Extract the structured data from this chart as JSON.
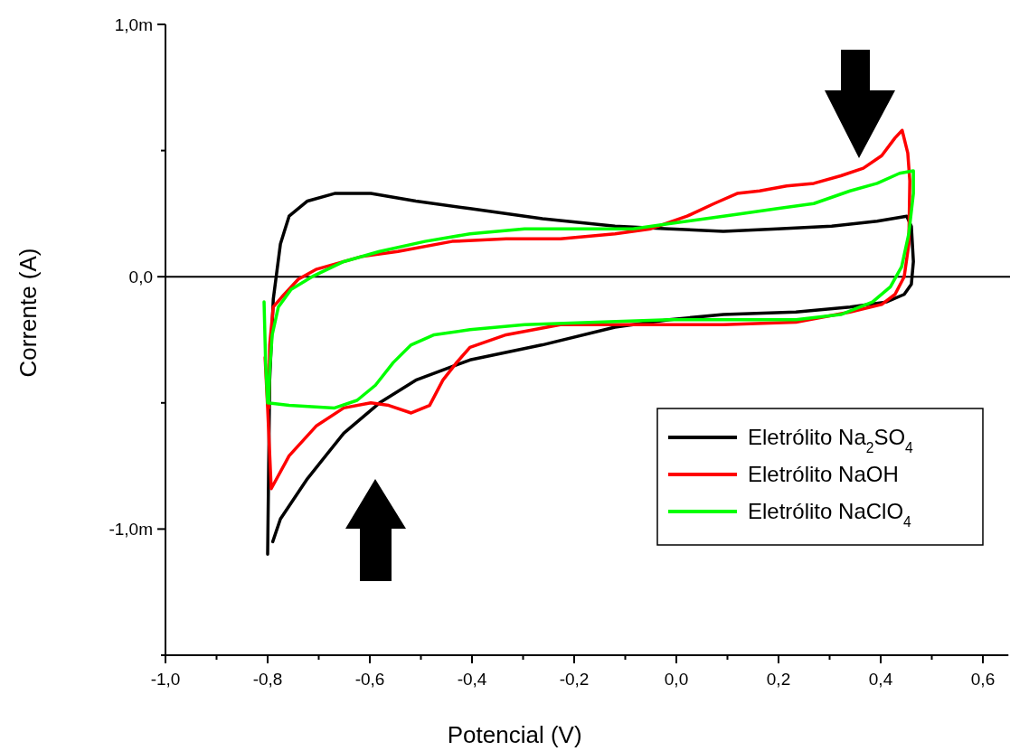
{
  "chart_data": {
    "type": "line",
    "xlabel": "Potencial (V)",
    "ylabel": "Corrente (A)",
    "xlim": [
      -1,
      0.65
    ],
    "ylim": [
      -1.5,
      1.0
    ],
    "xticks": [
      {
        "value": -1,
        "label": "-1,0"
      },
      {
        "value": -0.9,
        "label": null
      },
      {
        "value": -0.8,
        "label": "-0,8"
      },
      {
        "value": -0.7,
        "label": null
      },
      {
        "value": -0.6,
        "label": "-0,6"
      },
      {
        "value": -0.5,
        "label": null
      },
      {
        "value": -0.4,
        "label": "-0,4"
      },
      {
        "value": -0.3,
        "label": null
      },
      {
        "value": -0.2,
        "label": "-0,2"
      },
      {
        "value": -0.1,
        "label": null
      },
      {
        "value": 0,
        "label": "0,0"
      },
      {
        "value": 0.1,
        "label": null
      },
      {
        "value": 0.2,
        "label": "0,2"
      },
      {
        "value": 0.3,
        "label": null
      },
      {
        "value": 0.4,
        "label": "0,4"
      },
      {
        "value": 0.5,
        "label": null
      },
      {
        "value": 0.6,
        "label": "0,6"
      }
    ],
    "yticks": [
      {
        "value": -1.5,
        "label": null
      },
      {
        "value": -1.0,
        "label": "-1,0m"
      },
      {
        "value": -0.5,
        "label": null
      },
      {
        "value": 0,
        "label": "0,0"
      },
      {
        "value": 0.5,
        "label": null
      },
      {
        "value": 1.0,
        "label": "1,0m"
      }
    ],
    "ref_lines": [
      {
        "axis": "y",
        "value": 0
      }
    ],
    "legend": "bottom right",
    "marker": "none",
    "line_style": "solid",
    "series": [
      {
        "name": "Eletrólito Na$_{2}$SO$_{4}$",
        "color": "#000000",
        "x": [
          -0.8,
          -0.796,
          -0.789,
          -0.775,
          -0.758,
          -0.722,
          -0.669,
          -0.598,
          -0.51,
          -0.404,
          -0.262,
          -0.12,
          -0.014,
          0.092,
          0.198,
          0.304,
          0.393,
          0.451,
          0.46,
          0.464,
          0.46,
          0.446,
          0.411,
          0.34,
          0.234,
          0.092,
          -0.014,
          -0.12,
          -0.262,
          -0.404,
          -0.51,
          -0.581,
          -0.651,
          -0.722,
          -0.775,
          -0.79
        ],
        "values": [
          -1.1,
          -0.41,
          -0.09,
          0.13,
          0.24,
          0.3,
          0.33,
          0.33,
          0.3,
          0.27,
          0.23,
          0.2,
          0.19,
          0.18,
          0.19,
          0.2,
          0.22,
          0.24,
          0.2,
          0.06,
          -0.03,
          -0.07,
          -0.1,
          -0.12,
          -0.14,
          -0.15,
          -0.17,
          -0.2,
          -0.27,
          -0.33,
          -0.41,
          -0.5,
          -0.62,
          -0.8,
          -0.96,
          -1.05
        ]
      },
      {
        "name": "Eletrólito NaOH",
        "color": "#ff0000",
        "x": [
          -0.805,
          -0.8,
          -0.793,
          -0.758,
          -0.704,
          -0.651,
          -0.598,
          -0.563,
          -0.519,
          -0.483,
          -0.457,
          -0.43,
          -0.404,
          -0.333,
          -0.227,
          -0.085,
          0.092,
          0.234,
          0.34,
          0.402,
          0.428,
          0.446,
          0.455,
          0.457,
          0.453,
          0.442,
          0.428,
          0.402,
          0.366,
          0.322,
          0.269,
          0.216,
          0.163,
          0.119,
          0.074,
          0.021,
          -0.05,
          -0.12,
          -0.227,
          -0.333,
          -0.439,
          -0.545,
          -0.616,
          -0.704,
          -0.74,
          -0.772,
          -0.789,
          -0.796,
          -0.798
        ],
        "values": [
          -0.32,
          -0.52,
          -0.84,
          -0.71,
          -0.59,
          -0.52,
          -0.5,
          -0.51,
          -0.54,
          -0.51,
          -0.41,
          -0.34,
          -0.28,
          -0.23,
          -0.19,
          -0.19,
          -0.19,
          -0.18,
          -0.14,
          -0.11,
          -0.07,
          0,
          0.13,
          0.38,
          0.49,
          0.58,
          0.55,
          0.48,
          0.43,
          0.4,
          0.37,
          0.36,
          0.34,
          0.33,
          0.29,
          0.24,
          0.19,
          0.17,
          0.15,
          0.15,
          0.14,
          0.1,
          0.08,
          0.03,
          -0.01,
          -0.08,
          -0.12,
          -0.27,
          -0.52
        ]
      },
      {
        "name": "Eletrólito NaClO$_{4}$",
        "color": "#00ff00",
        "x": [
          -0.807,
          -0.804,
          -0.8,
          -0.758,
          -0.669,
          -0.625,
          -0.589,
          -0.554,
          -0.519,
          -0.474,
          -0.404,
          -0.297,
          -0.156,
          -0.014,
          0.127,
          0.234,
          0.322,
          0.384,
          0.419,
          0.441,
          0.455,
          0.464,
          0.464,
          0.437,
          0.393,
          0.34,
          0.269,
          0.198,
          0.127,
          0.057,
          -0.014,
          -0.085,
          -0.191,
          -0.297,
          -0.404,
          -0.492,
          -0.581,
          -0.651,
          -0.713,
          -0.754,
          -0.779,
          -0.791,
          -0.796,
          -0.798
        ],
        "values": [
          -0.1,
          -0.34,
          -0.5,
          -0.51,
          -0.52,
          -0.49,
          -0.43,
          -0.34,
          -0.27,
          -0.23,
          -0.21,
          -0.19,
          -0.18,
          -0.17,
          -0.17,
          -0.17,
          -0.15,
          -0.1,
          -0.04,
          0.04,
          0.17,
          0.33,
          0.42,
          0.41,
          0.37,
          0.34,
          0.29,
          0.27,
          0.25,
          0.23,
          0.21,
          0.19,
          0.19,
          0.19,
          0.17,
          0.14,
          0.1,
          0.06,
          0,
          -0.05,
          -0.12,
          -0.23,
          -0.37,
          -0.5
        ]
      }
    ]
  }
}
